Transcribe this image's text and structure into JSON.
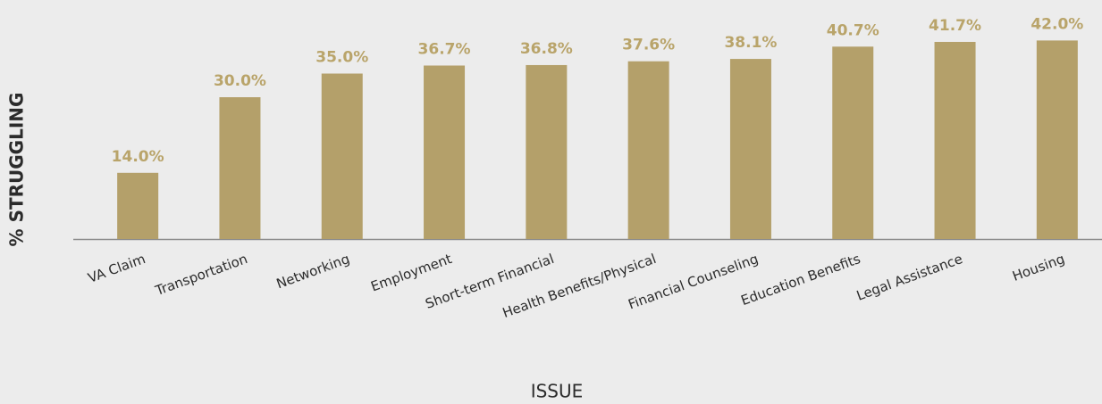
{
  "chart_data": {
    "type": "bar",
    "x_label": "ISSUE",
    "y_label": "% STRUGGLING",
    "categories": [
      "VA Claim",
      "Transportation",
      "Networking",
      "Employment",
      "Short-term Financial",
      "Health Benefits/Physical",
      "Financial Counseling",
      "Education Benefits",
      "Legal Assistance",
      "Housing"
    ],
    "values": [
      14.0,
      30.0,
      35.0,
      36.7,
      36.8,
      37.6,
      38.1,
      40.7,
      41.7,
      42.0
    ],
    "value_labels": [
      "14.0%",
      "30.0%",
      "35.0%",
      "36.7%",
      "36.8%",
      "37.6%",
      "38.1%",
      "40.7%",
      "41.7%",
      "42.0%"
    ],
    "color": "#b4a06a",
    "label_color": "#b9a46a",
    "ylim": [
      0,
      50
    ]
  }
}
